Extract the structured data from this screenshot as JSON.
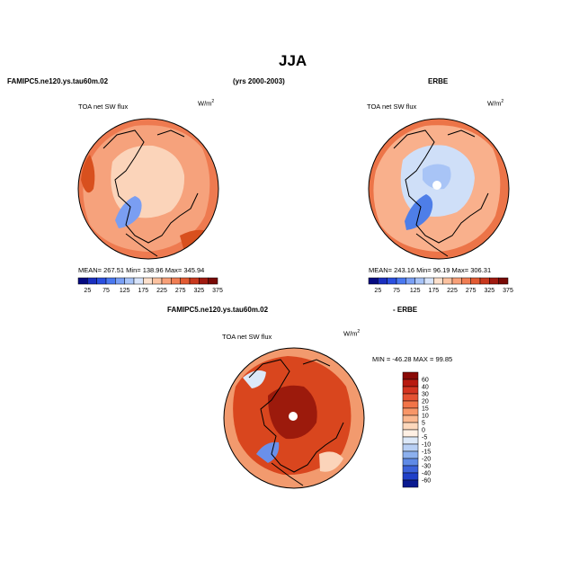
{
  "page": {
    "title": "JJA",
    "left_header": "FAMIPC5.ne120.ys.tau60m.02",
    "center_header": "(yrs 2000-2003)",
    "right_header": "ERBE",
    "diff_header_model": "FAMIPC5.ne120.ys.tau60m.02",
    "diff_header_obs": "- ERBE"
  },
  "chart_data": [
    {
      "type": "heatmap",
      "projection": "polar-stereographic north",
      "title": "TOA net SW flux",
      "units_base": "W/m",
      "units_exp": "2",
      "stats": {
        "mean": "267.51",
        "min": "138.96",
        "max": "345.94"
      },
      "stats_text": "MEAN= 267.51   Min= 138.96   Max= 345.94",
      "colorbar_labels": [
        "25",
        "75",
        "125",
        "175",
        "225",
        "275",
        "325",
        "375"
      ],
      "colorbar_colors": [
        "#050a80",
        "#1a2fc0",
        "#2a4fe0",
        "#4a78f0",
        "#7aa0f5",
        "#a8c4f8",
        "#d8e4fa",
        "#fde0cc",
        "#fcc2a0",
        "#f8a078",
        "#f07e54",
        "#e25a32",
        "#c8381e",
        "#a01a10",
        "#780a06"
      ]
    },
    {
      "type": "heatmap",
      "projection": "polar-stereographic north",
      "title": "TOA net SW flux",
      "units_base": "W/m",
      "units_exp": "2",
      "stats": {
        "mean": "243.16",
        "min": "96.19",
        "max": "306.31"
      },
      "stats_text": "MEAN= 243.16   Min=  96.19   Max= 306.31",
      "colorbar_labels": [
        "25",
        "75",
        "125",
        "175",
        "225",
        "275",
        "325",
        "375"
      ],
      "colorbar_colors": [
        "#050a80",
        "#1a2fc0",
        "#2a4fe0",
        "#4a78f0",
        "#7aa0f5",
        "#a8c4f8",
        "#d8e4fa",
        "#fde0cc",
        "#fcc2a0",
        "#f8a078",
        "#f07e54",
        "#e25a32",
        "#c8381e",
        "#a01a10",
        "#780a06"
      ]
    },
    {
      "type": "heatmap",
      "projection": "polar-stereographic north",
      "title": "TOA net SW flux",
      "units_base": "W/m",
      "units_exp": "2",
      "stats": {
        "min": "-46.28",
        "max": "99.85"
      },
      "stats_text": "MIN = -46.28  MAX =  99.85",
      "colorbar_labels": [
        "60",
        "40",
        "30",
        "20",
        "15",
        "10",
        "5",
        "0",
        "-5",
        "-10",
        "-15",
        "-20",
        "-30",
        "-40",
        "-60"
      ],
      "colorbar_colors": [
        "#8a0a06",
        "#b81a10",
        "#d43420",
        "#e55232",
        "#f27448",
        "#f89668",
        "#fbb890",
        "#fdd8bc",
        "#fff0e4",
        "#dce8f8",
        "#b8cff4",
        "#8cb0ee",
        "#5f8ae6",
        "#3c62da",
        "#2040c8",
        "#0a1a90"
      ]
    }
  ]
}
